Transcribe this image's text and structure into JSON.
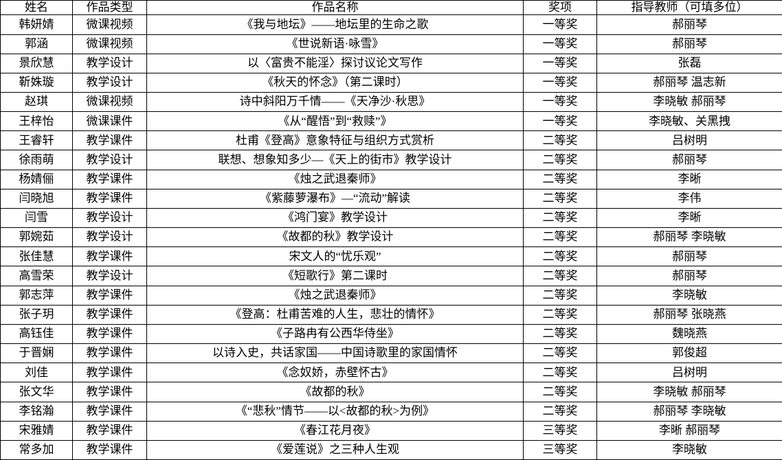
{
  "table": {
    "headers": [
      "姓名",
      "作品类型",
      "作品名称",
      "奖项",
      "指导教师（可填多位）"
    ],
    "rows": [
      {
        "name": "韩妍婧",
        "type": "微课视频",
        "title": "《我与地坛》——地坛里的生命之歌",
        "award": "一等奖",
        "teachers": "郝丽琴"
      },
      {
        "name": "郭涵",
        "type": "微课视频",
        "title": "《世说新语·咏雪》",
        "award": "一等奖",
        "teachers": "郝丽琴"
      },
      {
        "name": "景欣慧",
        "type": "教学设计",
        "title": "以〈富贵不能淫〉探讨议论文写作",
        "award": "一等奖",
        "teachers": "张磊"
      },
      {
        "name": "靳姝璇",
        "type": "教学设计",
        "title": "《秋天的怀念》（第二课时）",
        "award": "一等奖",
        "teachers": "郝丽琴 温志新"
      },
      {
        "name": "赵琪",
        "type": "微课视频",
        "title": "诗中斜阳万千情——《天净沙·秋思》",
        "award": "一等奖",
        "teachers": "李晓敏 郝丽琴"
      },
      {
        "name": "王梓怡",
        "type": "微课课件",
        "title": "《从“醒悟”到“救赎”》",
        "award": "一等奖",
        "teachers": "李晓敏、关黑拽"
      },
      {
        "name": "王睿轩",
        "type": "教学课件",
        "title": "杜甫《登高》意象特征与组织方式赏析",
        "award": "二等奖",
        "teachers": "吕树明"
      },
      {
        "name": "徐雨萌",
        "type": "教学设计",
        "title": "联想、想象知多少—《天上的街市》教学设计",
        "award": "二等奖",
        "teachers": "郝丽琴"
      },
      {
        "name": "杨婧俪",
        "type": "教学课件",
        "title": "《烛之武退秦师》",
        "award": "二等奖",
        "teachers": "李晰"
      },
      {
        "name": "闫晓旭",
        "type": "教学课件",
        "title": "《紫藤萝瀑布》—“流动”解读",
        "award": "二等奖",
        "teachers": "李伟"
      },
      {
        "name": "闫雪",
        "type": "教学设计",
        "title": "《鸿门宴》教学设计",
        "award": "二等奖",
        "teachers": "李晰"
      },
      {
        "name": "郭婉茹",
        "type": "教学设计",
        "title": "《故都的秋》教学设计",
        "award": "二等奖",
        "teachers": "郝丽琴 李晓敏"
      },
      {
        "name": "张佳慧",
        "type": "教学课件",
        "title": "宋文人的“忧乐观”",
        "award": "二等奖",
        "teachers": "郝丽琴"
      },
      {
        "name": "高雪荣",
        "type": "教学设计",
        "title": "《短歌行》第二课时",
        "award": "二等奖",
        "teachers": "郝丽琴"
      },
      {
        "name": "郭志萍",
        "type": "教学课件",
        "title": "《烛之武退秦师》",
        "award": "二等奖",
        "teachers": "李晓敏"
      },
      {
        "name": "张子玥",
        "type": "教学课件",
        "title": "《登高：杜甫苦难的人生，悲壮的情怀》",
        "award": "二等奖",
        "teachers": "郝丽琴 张晓燕"
      },
      {
        "name": "高钰佳",
        "type": "教学课件",
        "title": "《子路冉有公西华侍坐》",
        "award": "二等奖",
        "teachers": "魏晓燕"
      },
      {
        "name": "于晋娴",
        "type": "教学课件",
        "title": "以诗入史，共话家国——中国诗歌里的家国情怀",
        "award": "二等奖",
        "teachers": "郭俊超"
      },
      {
        "name": "刘佳",
        "type": "教学课件",
        "title": "《念奴娇，赤壁怀古》",
        "award": "二等奖",
        "teachers": "吕树明"
      },
      {
        "name": "张文华",
        "type": "教学课件",
        "title": "《故都的秋》",
        "award": "二等奖",
        "teachers": "李晓敏 郝丽琴"
      },
      {
        "name": "李铭瀚",
        "type": "教学课件",
        "title": "《“悲秋”情节——以<故都的秋>为例》",
        "award": "二等奖",
        "teachers": "郝丽琴 李晓敏"
      },
      {
        "name": "宋雅婧",
        "type": "教学课件",
        "title": "《春江花月夜》",
        "award": "三等奖",
        "teachers": "李晰 郝丽琴"
      },
      {
        "name": "常多加",
        "type": "教学课件",
        "title": "《爱莲说》之三种人生观",
        "award": "三等奖",
        "teachers": "李晓敏"
      }
    ]
  }
}
